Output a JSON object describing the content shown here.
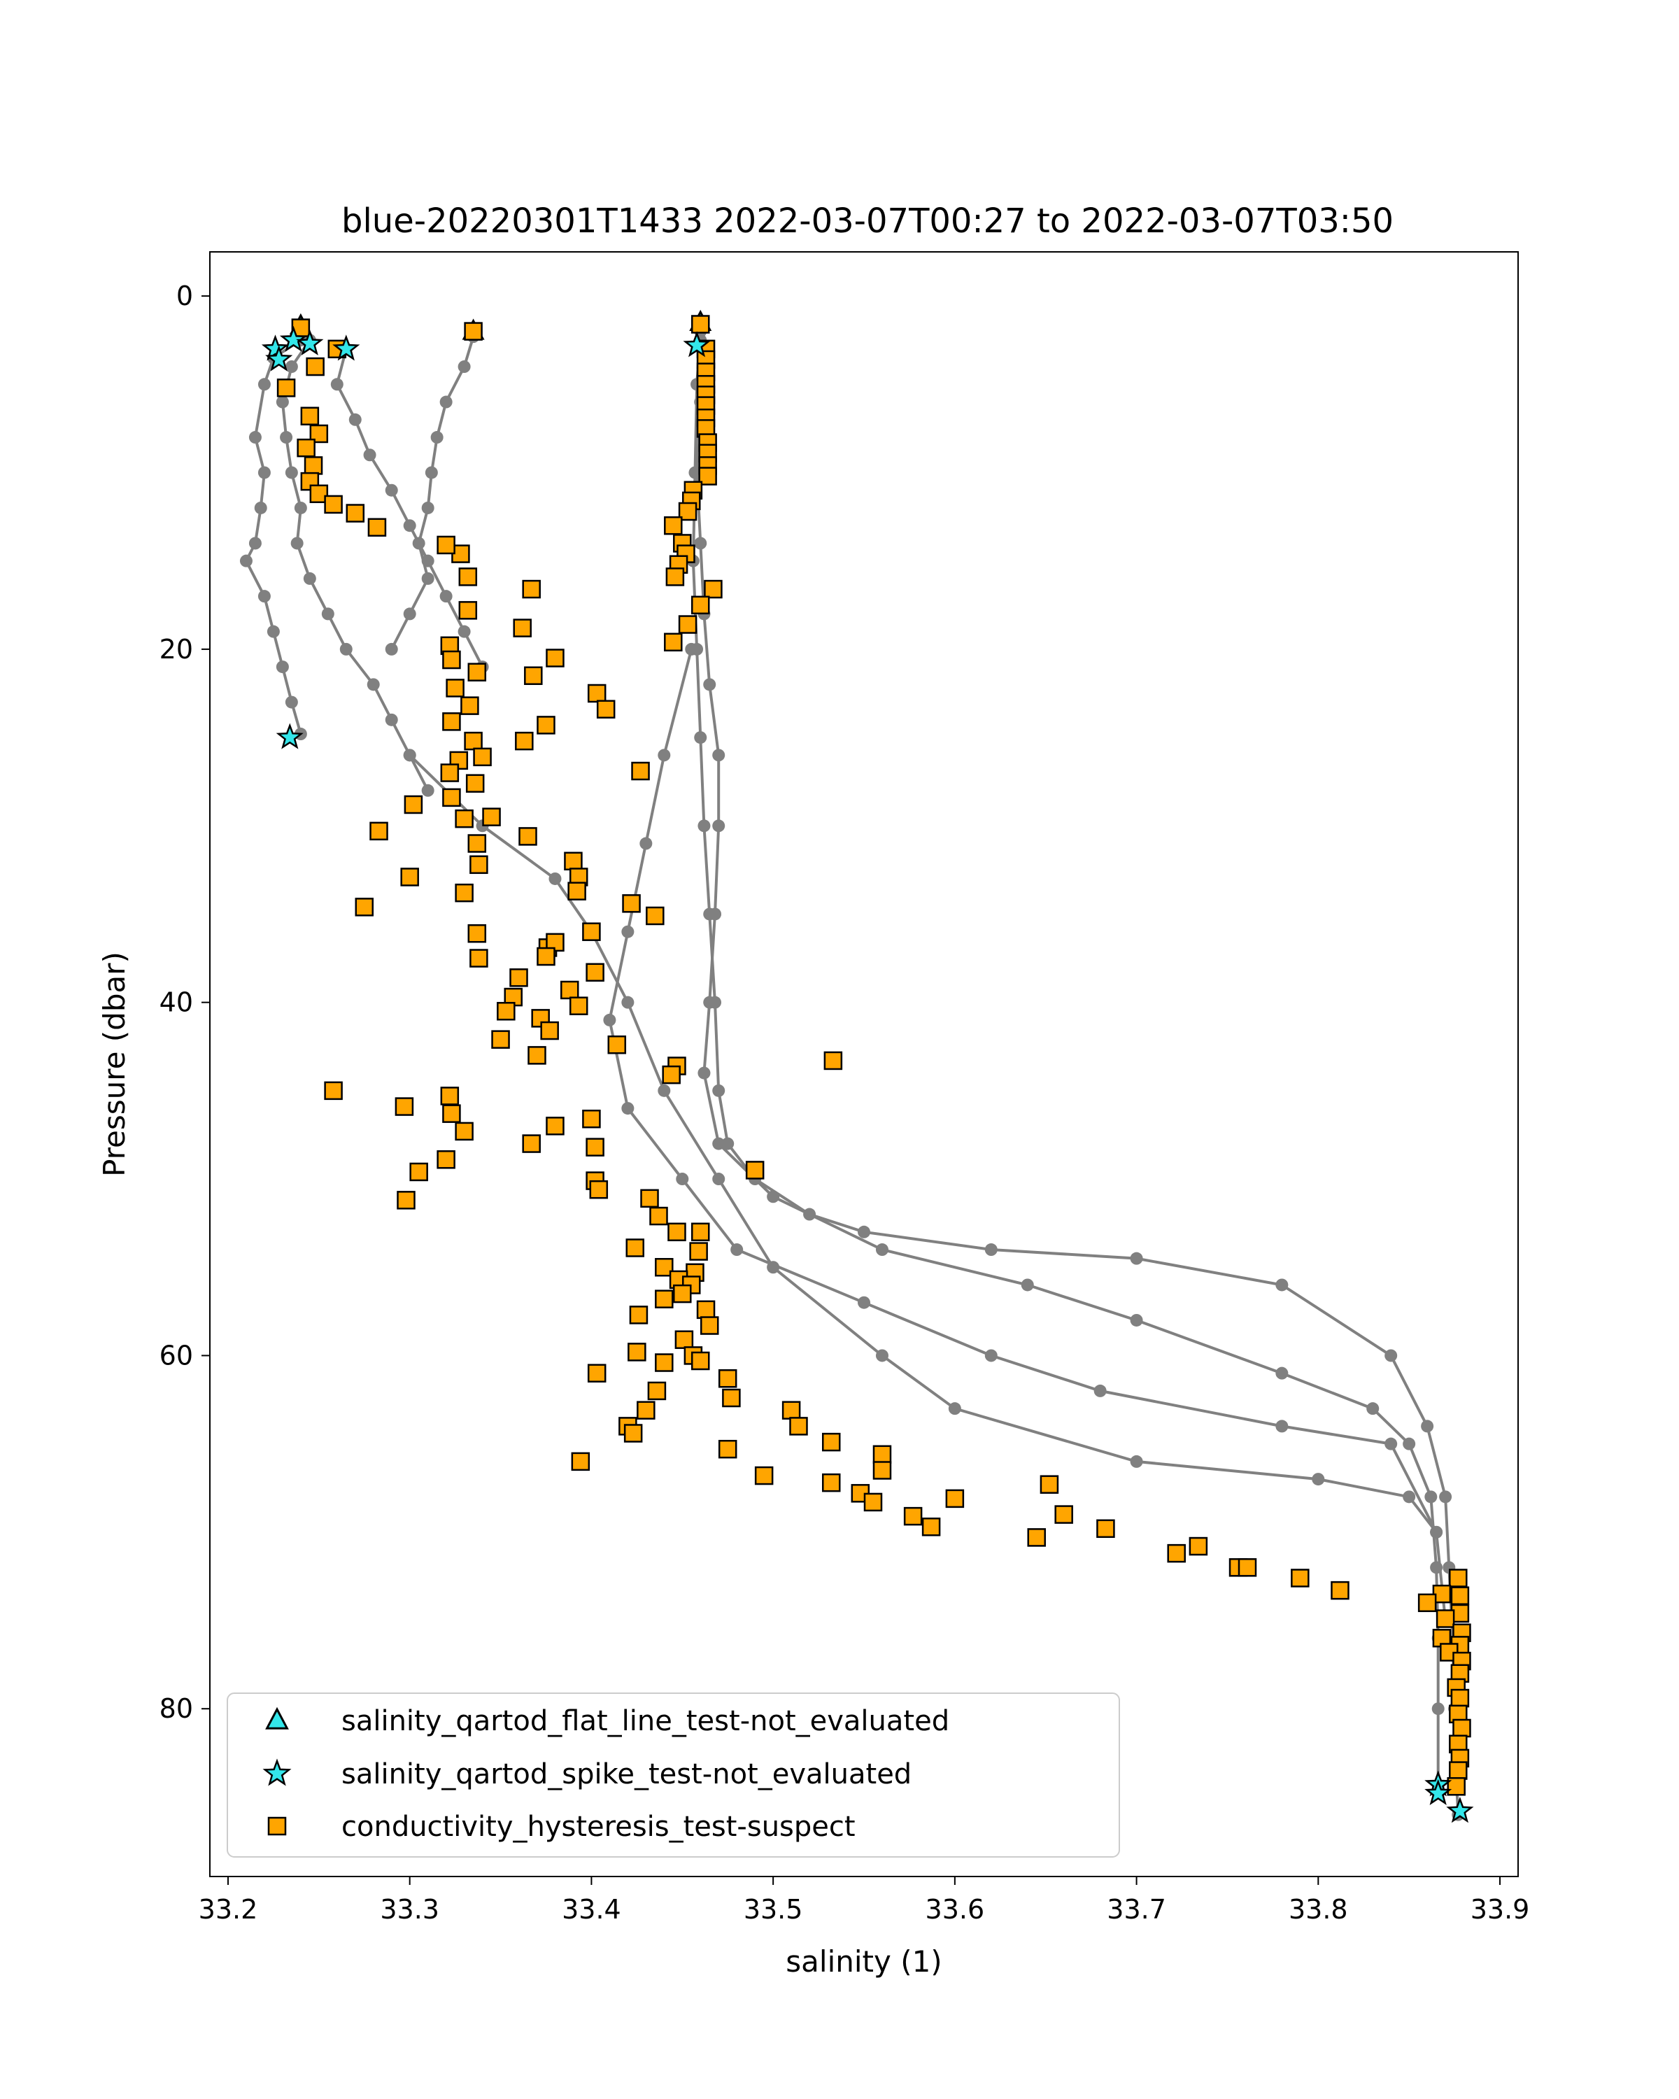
{
  "chart_data": {
    "type": "scatter",
    "title": "blue-20220301T1433 2022-03-07T00:27 to 2022-03-07T03:50",
    "xlabel": "salinity (1)",
    "ylabel": "Pressure (dbar)",
    "xlim": [
      33.19,
      33.91
    ],
    "ylim": [
      89.5,
      -2.5
    ],
    "y_inverted": true,
    "xticks": [
      33.2,
      33.3,
      33.4,
      33.5,
      33.6,
      33.7,
      33.8,
      33.9
    ],
    "xtick_labels": [
      "33.2",
      "33.3",
      "33.4",
      "33.5",
      "33.6",
      "33.7",
      "33.8",
      "33.9"
    ],
    "yticks": [
      0,
      20,
      40,
      60,
      80
    ],
    "ytick_labels": [
      "0",
      "20",
      "40",
      "60",
      "80"
    ],
    "grid": false,
    "legend_position": "bottom-left",
    "colors": {
      "profile_line": "#808080",
      "flat_line_marker": "#33e6ea",
      "spike_marker": "#33e6ea",
      "hysteresis_marker": "#ffa500",
      "marker_edge": "#000000"
    },
    "profiles": [
      {
        "points": [
          [
            33.24,
            2.5
          ],
          [
            33.225,
            3.5
          ],
          [
            33.22,
            5
          ],
          [
            33.215,
            8
          ],
          [
            33.22,
            10
          ],
          [
            33.218,
            12
          ],
          [
            33.215,
            14
          ],
          [
            33.21,
            15
          ],
          [
            33.22,
            17
          ],
          [
            33.225,
            19
          ],
          [
            33.23,
            21
          ],
          [
            33.235,
            23
          ],
          [
            33.24,
            24.8
          ]
        ]
      },
      {
        "points": [
          [
            33.245,
            2.5
          ],
          [
            33.235,
            4
          ],
          [
            33.23,
            6
          ],
          [
            33.232,
            8
          ],
          [
            33.235,
            10
          ],
          [
            33.24,
            12
          ],
          [
            33.238,
            14
          ],
          [
            33.245,
            16
          ],
          [
            33.255,
            18
          ],
          [
            33.265,
            20
          ],
          [
            33.28,
            22
          ],
          [
            33.29,
            24
          ],
          [
            33.3,
            26
          ],
          [
            33.31,
            28
          ]
        ]
      },
      {
        "points": [
          [
            33.265,
            3
          ],
          [
            33.26,
            5
          ],
          [
            33.27,
            7
          ],
          [
            33.278,
            9
          ],
          [
            33.29,
            11
          ],
          [
            33.3,
            13
          ],
          [
            33.31,
            15
          ],
          [
            33.32,
            17
          ],
          [
            33.33,
            19
          ],
          [
            33.34,
            21
          ]
        ]
      },
      {
        "points": [
          [
            33.335,
            2.3
          ],
          [
            33.33,
            4
          ],
          [
            33.32,
            6
          ],
          [
            33.315,
            8
          ],
          [
            33.312,
            10
          ],
          [
            33.31,
            12
          ],
          [
            33.305,
            14
          ],
          [
            33.31,
            16
          ],
          [
            33.3,
            18
          ],
          [
            33.29,
            20
          ]
        ]
      },
      {
        "points": [
          [
            33.46,
            2
          ],
          [
            33.458,
            5
          ],
          [
            33.457,
            10
          ],
          [
            33.456,
            15
          ],
          [
            33.458,
            20
          ],
          [
            33.46,
            25
          ],
          [
            33.462,
            30
          ],
          [
            33.465,
            35
          ],
          [
            33.468,
            40
          ],
          [
            33.47,
            45
          ],
          [
            33.475,
            48
          ],
          [
            33.49,
            50
          ],
          [
            33.52,
            52
          ],
          [
            33.55,
            53
          ],
          [
            33.62,
            54
          ],
          [
            33.7,
            54.5
          ],
          [
            33.78,
            56
          ],
          [
            33.84,
            60
          ],
          [
            33.86,
            64
          ],
          [
            33.87,
            68
          ],
          [
            33.872,
            72
          ],
          [
            33.874,
            76
          ],
          [
            33.875,
            80
          ],
          [
            33.876,
            84
          ],
          [
            33.877,
            86
          ]
        ]
      },
      {
        "points": [
          [
            33.46,
            2.5
          ],
          [
            33.46,
            6
          ],
          [
            33.458,
            10
          ],
          [
            33.46,
            14
          ],
          [
            33.462,
            18
          ],
          [
            33.465,
            22
          ],
          [
            33.47,
            26
          ],
          [
            33.47,
            30
          ],
          [
            33.468,
            35
          ],
          [
            33.465,
            40
          ],
          [
            33.462,
            44
          ],
          [
            33.47,
            48
          ],
          [
            33.5,
            51
          ],
          [
            33.56,
            54
          ],
          [
            33.64,
            56
          ],
          [
            33.7,
            58
          ],
          [
            33.78,
            61
          ],
          [
            33.83,
            63
          ],
          [
            33.85,
            65
          ],
          [
            33.862,
            68
          ],
          [
            33.865,
            72
          ],
          [
            33.866,
            76
          ],
          [
            33.866,
            80
          ],
          [
            33.866,
            84.5
          ]
        ]
      },
      {
        "points": [
          [
            33.455,
            20
          ],
          [
            33.44,
            26
          ],
          [
            33.43,
            31
          ],
          [
            33.42,
            36
          ],
          [
            33.41,
            41
          ],
          [
            33.42,
            46
          ],
          [
            33.45,
            50
          ],
          [
            33.48,
            54
          ],
          [
            33.55,
            57
          ],
          [
            33.62,
            60
          ],
          [
            33.68,
            62
          ],
          [
            33.78,
            64
          ],
          [
            33.84,
            65
          ],
          [
            33.865,
            70
          ],
          [
            33.87,
            75
          ]
        ]
      },
      {
        "points": [
          [
            33.3,
            26
          ],
          [
            33.34,
            30
          ],
          [
            33.38,
            33
          ],
          [
            33.4,
            36
          ],
          [
            33.42,
            40
          ],
          [
            33.44,
            45
          ],
          [
            33.47,
            50
          ],
          [
            33.5,
            55
          ],
          [
            33.56,
            60
          ],
          [
            33.6,
            63
          ],
          [
            33.7,
            66
          ],
          [
            33.8,
            67
          ],
          [
            33.85,
            68
          ],
          [
            33.865,
            70
          ]
        ]
      }
    ],
    "hysteresis_suspect_points": [
      [
        33.24,
        1.8
      ],
      [
        33.248,
        4
      ],
      [
        33.232,
        5.2
      ],
      [
        33.245,
        6.8
      ],
      [
        33.25,
        7.8
      ],
      [
        33.243,
        8.6
      ],
      [
        33.247,
        9.6
      ],
      [
        33.245,
        10.5
      ],
      [
        33.25,
        11.2
      ],
      [
        33.258,
        11.8
      ],
      [
        33.27,
        12.3
      ],
      [
        33.282,
        13.1
      ],
      [
        33.26,
        3
      ],
      [
        33.335,
        2
      ],
      [
        33.328,
        14.6
      ],
      [
        33.32,
        14.1
      ],
      [
        33.332,
        15.9
      ],
      [
        33.367,
        16.6
      ],
      [
        33.332,
        17.8
      ],
      [
        33.362,
        18.8
      ],
      [
        33.322,
        19.8
      ],
      [
        33.323,
        20.6
      ],
      [
        33.337,
        21.3
      ],
      [
        33.368,
        21.5
      ],
      [
        33.38,
        20.5
      ],
      [
        33.403,
        22.5
      ],
      [
        33.408,
        23.4
      ],
      [
        33.325,
        22.2
      ],
      [
        33.333,
        23.2
      ],
      [
        33.323,
        24.1
      ],
      [
        33.335,
        25.2
      ],
      [
        33.363,
        25.2
      ],
      [
        33.375,
        24.3
      ],
      [
        33.327,
        26.3
      ],
      [
        33.34,
        26.1
      ],
      [
        33.322,
        27
      ],
      [
        33.336,
        27.6
      ],
      [
        33.427,
        26.9
      ],
      [
        33.323,
        28.4
      ],
      [
        33.33,
        29.6
      ],
      [
        33.345,
        29.5
      ],
      [
        33.302,
        28.8
      ],
      [
        33.283,
        30.3
      ],
      [
        33.337,
        31
      ],
      [
        33.365,
        30.6
      ],
      [
        33.338,
        32.2
      ],
      [
        33.3,
        32.9
      ],
      [
        33.33,
        33.8
      ],
      [
        33.275,
        34.6
      ],
      [
        33.39,
        32
      ],
      [
        33.393,
        32.9
      ],
      [
        33.392,
        33.7
      ],
      [
        33.422,
        34.4
      ],
      [
        33.435,
        35.1
      ],
      [
        33.4,
        36
      ],
      [
        33.337,
        36.1
      ],
      [
        33.376,
        36.9
      ],
      [
        33.38,
        36.6
      ],
      [
        33.338,
        37.5
      ],
      [
        33.375,
        37.4
      ],
      [
        33.36,
        38.6
      ],
      [
        33.402,
        38.3
      ],
      [
        33.357,
        39.7
      ],
      [
        33.388,
        39.3
      ],
      [
        33.393,
        40.2
      ],
      [
        33.353,
        40.5
      ],
      [
        33.372,
        40.9
      ],
      [
        33.377,
        41.6
      ],
      [
        33.35,
        42.1
      ],
      [
        33.37,
        43
      ],
      [
        33.414,
        42.4
      ],
      [
        33.533,
        43.3
      ],
      [
        33.447,
        43.6
      ],
      [
        33.444,
        44.1
      ],
      [
        33.258,
        45
      ],
      [
        33.322,
        45.3
      ],
      [
        33.297,
        45.9
      ],
      [
        33.323,
        46.3
      ],
      [
        33.4,
        46.6
      ],
      [
        33.38,
        47
      ],
      [
        33.33,
        47.3
      ],
      [
        33.367,
        48
      ],
      [
        33.402,
        48.2
      ],
      [
        33.32,
        48.9
      ],
      [
        33.305,
        49.6
      ],
      [
        33.402,
        50.1
      ],
      [
        33.404,
        50.6
      ],
      [
        33.432,
        51.1
      ],
      [
        33.298,
        51.2
      ],
      [
        33.49,
        49.5
      ],
      [
        33.437,
        52.1
      ],
      [
        33.447,
        53
      ],
      [
        33.46,
        53
      ],
      [
        33.424,
        53.9
      ],
      [
        33.459,
        54.1
      ],
      [
        33.44,
        55
      ],
      [
        33.457,
        55.3
      ],
      [
        33.448,
        55.7
      ],
      [
        33.455,
        56
      ],
      [
        33.45,
        56.5
      ],
      [
        33.44,
        56.8
      ],
      [
        33.463,
        57.4
      ],
      [
        33.426,
        57.7
      ],
      [
        33.465,
        58.3
      ],
      [
        33.451,
        59.1
      ],
      [
        33.425,
        59.8
      ],
      [
        33.456,
        60
      ],
      [
        33.44,
        60.4
      ],
      [
        33.46,
        60.3
      ],
      [
        33.475,
        61.3
      ],
      [
        33.403,
        61
      ],
      [
        33.436,
        62
      ],
      [
        33.477,
        62.4
      ],
      [
        33.43,
        63.1
      ],
      [
        33.42,
        64
      ],
      [
        33.423,
        64.4
      ],
      [
        33.51,
        63.1
      ],
      [
        33.514,
        64
      ],
      [
        33.532,
        64.9
      ],
      [
        33.475,
        65.3
      ],
      [
        33.394,
        66
      ],
      [
        33.56,
        65.6
      ],
      [
        33.56,
        66.5
      ],
      [
        33.495,
        66.8
      ],
      [
        33.532,
        67.2
      ],
      [
        33.548,
        67.8
      ],
      [
        33.555,
        68.3
      ],
      [
        33.652,
        67.3
      ],
      [
        33.6,
        68.1
      ],
      [
        33.577,
        69.1
      ],
      [
        33.66,
        69
      ],
      [
        33.587,
        69.7
      ],
      [
        33.683,
        69.8
      ],
      [
        33.645,
        70.3
      ],
      [
        33.734,
        70.8
      ],
      [
        33.722,
        71.2
      ],
      [
        33.756,
        72
      ],
      [
        33.761,
        72
      ],
      [
        33.79,
        72.6
      ],
      [
        33.812,
        73.3
      ],
      [
        33.877,
        72.6
      ],
      [
        33.868,
        73.5
      ],
      [
        33.878,
        73.6
      ],
      [
        33.86,
        74
      ],
      [
        33.878,
        74.6
      ],
      [
        33.87,
        74.9
      ],
      [
        33.879,
        75.7
      ],
      [
        33.868,
        76
      ],
      [
        33.878,
        76.4
      ],
      [
        33.872,
        76.8
      ],
      [
        33.879,
        77.3
      ],
      [
        33.878,
        78
      ],
      [
        33.876,
        78.8
      ],
      [
        33.878,
        79.4
      ],
      [
        33.877,
        80.3
      ],
      [
        33.879,
        81.1
      ],
      [
        33.877,
        82
      ],
      [
        33.878,
        82.8
      ],
      [
        33.877,
        83.5
      ],
      [
        33.876,
        84.4
      ],
      [
        33.46,
        1.6
      ],
      [
        33.463,
        3
      ],
      [
        33.463,
        3.6
      ],
      [
        33.463,
        4.3
      ],
      [
        33.463,
        5
      ],
      [
        33.463,
        5.6
      ],
      [
        33.463,
        6.2
      ],
      [
        33.463,
        6.9
      ],
      [
        33.463,
        7.5
      ],
      [
        33.464,
        8.3
      ],
      [
        33.464,
        8.9
      ],
      [
        33.464,
        9.6
      ],
      [
        33.464,
        10.2
      ],
      [
        33.456,
        11
      ],
      [
        33.455,
        11.6
      ],
      [
        33.453,
        12.2
      ],
      [
        33.445,
        13
      ],
      [
        33.45,
        14
      ],
      [
        33.452,
        14.6
      ],
      [
        33.448,
        15.2
      ],
      [
        33.446,
        15.9
      ],
      [
        33.467,
        16.6
      ],
      [
        33.46,
        17.5
      ],
      [
        33.453,
        18.6
      ],
      [
        33.445,
        19.6
      ]
    ],
    "spike_not_evaluated_points": [
      [
        33.226,
        3
      ],
      [
        33.228,
        3.6
      ],
      [
        33.236,
        2.5
      ],
      [
        33.245,
        2.7
      ],
      [
        33.265,
        3
      ],
      [
        33.458,
        2.8
      ],
      [
        33.234,
        25
      ],
      [
        33.866,
        84.3
      ],
      [
        33.866,
        84.8
      ],
      [
        33.878,
        85.8
      ]
    ],
    "flat_line_not_evaluated_points": [
      [
        33.24,
        1.7
      ],
      [
        33.46,
        1.5
      ],
      [
        33.335,
        2
      ]
    ],
    "legend": [
      {
        "key": "flat",
        "label": "salinity_qartod_flat_line_test-not_evaluated"
      },
      {
        "key": "spike",
        "label": "salinity_qartod_spike_test-not_evaluated"
      },
      {
        "key": "hyst",
        "label": "conductivity_hysteresis_test-suspect"
      }
    ]
  }
}
